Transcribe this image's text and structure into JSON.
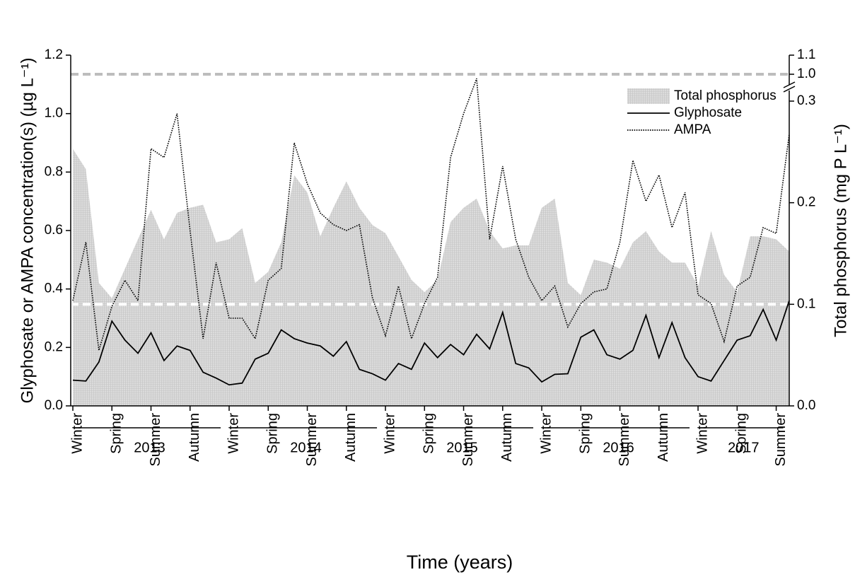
{
  "chart_data": {
    "type": "line",
    "xlabel": "Time (years)",
    "ylabel": "Glyphosate or AMPA concentration(s) (µg L⁻¹)",
    "y2label": "Total phosphorus (mg P L⁻¹)",
    "categories": [
      "Winter",
      null,
      null,
      "Spring",
      null,
      null,
      "Summer",
      null,
      null,
      "Autumn",
      null,
      null,
      "Winter",
      null,
      null,
      "Spring",
      null,
      null,
      "Summer",
      null,
      null,
      "Autumn",
      null,
      null,
      "Winter",
      null,
      null,
      "Spring",
      null,
      null,
      "Summer",
      null,
      null,
      "Autumn",
      null,
      null,
      "Winter",
      null,
      null,
      "Spring",
      null,
      null,
      "Summer",
      null,
      null,
      "Autumn",
      null,
      null,
      "Winter",
      null,
      null,
      "Spring",
      null,
      null,
      "Summer",
      null
    ],
    "years": [
      "2013",
      "2014",
      "2015",
      "2016",
      "2017"
    ],
    "ylim": [
      0,
      1.2
    ],
    "yticks": [
      {
        "value": 0,
        "label": "0.0"
      },
      {
        "value": 0.2,
        "label": "0.2"
      },
      {
        "value": 0.4,
        "label": "0.4"
      },
      {
        "value": 0.6,
        "label": "0.6"
      },
      {
        "value": 0.8,
        "label": "0.8"
      },
      {
        "value": 1.0,
        "label": "1.0"
      },
      {
        "value": 1.2,
        "label": "1.2"
      }
    ],
    "y2lim": [
      0,
      1.1
    ],
    "y2ticks": [
      {
        "value": 0,
        "label": "0.0"
      },
      {
        "value": 0.1,
        "label": "0.1"
      },
      {
        "value": 0.2,
        "label": "0.2"
      },
      {
        "value": 0.3,
        "label": "0.3"
      },
      {
        "value": 1.0,
        "label": "1.0"
      },
      {
        "value": 1.1,
        "label": "1.1"
      }
    ],
    "y2_axis_break": true,
    "legend": "upper right",
    "reference_lines": [
      {
        "axis": "y2",
        "value": 1.0,
        "color": "#bdbdbd"
      },
      {
        "axis": "y2",
        "value": 0.1,
        "color": "#ffffff"
      }
    ],
    "series": [
      {
        "name": "Total phosphorus",
        "kind": "area",
        "axis": "y2",
        "color": "#d9d9d9",
        "values": [
          0.253,
          0.233,
          0.121,
          0.106,
          0.135,
          0.164,
          0.193,
          0.164,
          0.19,
          0.195,
          0.198,
          0.161,
          0.164,
          0.175,
          0.121,
          0.132,
          0.161,
          0.227,
          0.21,
          0.167,
          0.195,
          0.221,
          0.195,
          0.178,
          0.17,
          0.147,
          0.124,
          0.112,
          0.124,
          0.181,
          0.195,
          0.204,
          0.172,
          0.155,
          0.158,
          0.158,
          0.195,
          0.204,
          0.121,
          0.109,
          0.144,
          0.141,
          0.135,
          0.161,
          0.172,
          0.152,
          0.141,
          0.141,
          0.118,
          0.172,
          0.129,
          0.112,
          0.167,
          0.167,
          0.164,
          0.152
        ]
      },
      {
        "name": "Glyphosate",
        "kind": "line",
        "style": "solid",
        "color": "#000000",
        "values": [
          0.088,
          0.085,
          0.15,
          0.29,
          0.225,
          0.18,
          0.25,
          0.155,
          0.205,
          0.19,
          0.115,
          0.095,
          0.072,
          0.078,
          0.16,
          0.18,
          0.26,
          0.23,
          0.215,
          0.205,
          0.17,
          0.22,
          0.125,
          0.11,
          0.088,
          0.145,
          0.125,
          0.215,
          0.165,
          0.21,
          0.175,
          0.245,
          0.195,
          0.32,
          0.145,
          0.13,
          0.082,
          0.108,
          0.11,
          0.235,
          0.26,
          0.175,
          0.16,
          0.19,
          0.31,
          0.165,
          0.285,
          0.165,
          0.1,
          0.085,
          0.155,
          0.225,
          0.24,
          0.33,
          0.225,
          0.36
        ]
      },
      {
        "name": "AMPA",
        "kind": "line",
        "style": "dotted",
        "color": "#000000",
        "values": [
          0.36,
          0.56,
          0.19,
          0.34,
          0.43,
          0.36,
          0.88,
          0.85,
          1.0,
          0.6,
          0.23,
          0.49,
          0.3,
          0.3,
          0.23,
          0.43,
          0.47,
          0.9,
          0.76,
          0.66,
          0.62,
          0.6,
          0.62,
          0.37,
          0.24,
          0.41,
          0.23,
          0.35,
          0.44,
          0.85,
          1.0,
          1.12,
          0.57,
          0.82,
          0.57,
          0.44,
          0.36,
          0.41,
          0.27,
          0.35,
          0.39,
          0.4,
          0.56,
          0.84,
          0.7,
          0.79,
          0.61,
          0.73,
          0.38,
          0.35,
          0.22,
          0.41,
          0.44,
          0.61,
          0.59,
          0.93
        ]
      }
    ]
  }
}
